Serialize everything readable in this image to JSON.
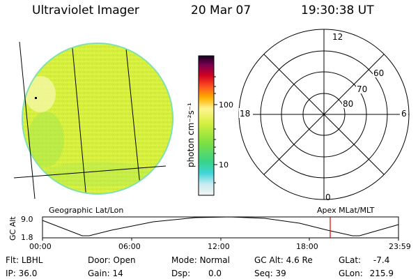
{
  "header": {
    "instrument": "Ultraviolet Imager",
    "date": "20 Mar 07",
    "time": "19:30:38 UT"
  },
  "colors": {
    "disk_main": "#d9f23a",
    "disk_bright": "#f4f7a8",
    "disk_edge": "#7fe0a0",
    "time_marker": "#e00000"
  },
  "colorbar": {
    "label": "photon cm⁻²s⁻¹",
    "ticks": [
      "100",
      "10"
    ],
    "stops": [
      "#f0f0f0",
      "#b8e8f0",
      "#40d0d0",
      "#30d080",
      "#90e040",
      "#e0f040",
      "#fff080",
      "#ffb000",
      "#ff4020",
      "#d00020",
      "#800060",
      "#200030"
    ]
  },
  "polar": {
    "lat_labels": [
      "60",
      "70",
      "80"
    ],
    "mlt_labels": {
      "top": "12",
      "left": "18",
      "right": "6",
      "bottom": "0"
    }
  },
  "captions": {
    "left": "Geographic Lat/Lon",
    "right": "Apex MLat/MLT"
  },
  "timeline": {
    "ylabel": "GC Alt",
    "ymax": "9.0",
    "ymin": "1.8",
    "ticks": [
      "00:00",
      "06:00",
      "12:00",
      "18:00",
      "23:59"
    ],
    "marker_time": "19:30:38"
  },
  "info": {
    "filter_label": "Flt:",
    "filter_value": "LBHL",
    "ip_label": "IP:",
    "ip_value": "36.0",
    "door_label": "Door:",
    "door_value": "Open",
    "gain_label": "Gain:",
    "gain_value": "14",
    "mode_label": "Mode:",
    "mode_value": "Normal",
    "dsp_label": "Dsp:",
    "dsp_value": "0.0",
    "gcalt_label": "GC Alt:",
    "gcalt_value": "4.6 Re",
    "seq_label": "Seq:",
    "seq_value": "39",
    "glat_label": "GLat:",
    "glat_value": "-7.4",
    "glon_label": "GLon:",
    "glon_value": "215.9"
  }
}
